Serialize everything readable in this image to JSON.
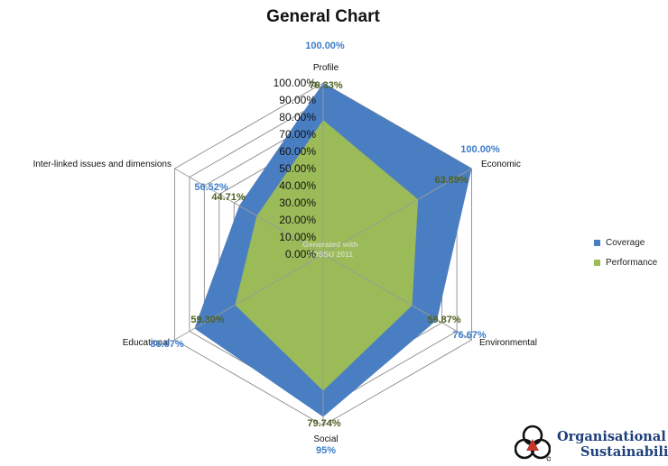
{
  "chart_data": {
    "type": "radar",
    "title": "General Chart",
    "axes": [
      "Profile",
      "Economic",
      "Environmental",
      "Social",
      "Educational",
      "Inter-linked issues and dimensions"
    ],
    "tick_labels": [
      "0.00%",
      "10.00%",
      "20.00%",
      "30.00%",
      "40.00%",
      "50.00%",
      "60.00%",
      "70.00%",
      "80.00%",
      "90.00%",
      "100.00%"
    ],
    "range": [
      0,
      100
    ],
    "series": [
      {
        "name": "Coverage",
        "color": "#4a7ec2",
        "values": [
          100,
          100,
          76.67,
          95,
          86.67,
          56.52
        ],
        "labels": [
          "100.00%",
          "100.00%",
          "76.67%",
          "95%",
          "86.67%",
          "56.52%"
        ]
      },
      {
        "name": "Performance",
        "color": "#9bbb59",
        "values": [
          78.33,
          63.89,
          59.87,
          79.74,
          59.3,
          44.71
        ],
        "labels": [
          "78.33%",
          "63.89%",
          "59.87%",
          "79.74%",
          "59.30%",
          "44.71%"
        ]
      }
    ],
    "watermark": [
      "Generated with",
      "FOSSU 2011"
    ],
    "legend_position": "right"
  },
  "logo": {
    "line1": "Organisational",
    "line2": "Sustainability"
  }
}
